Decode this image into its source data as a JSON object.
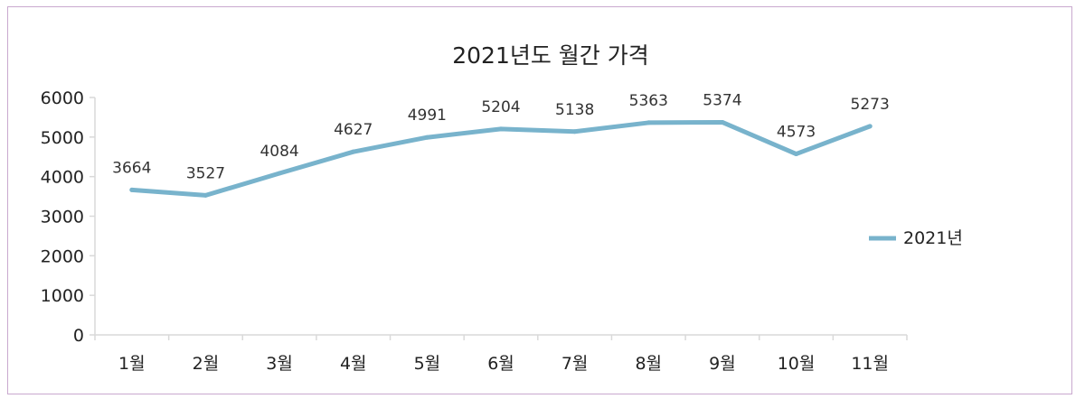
{
  "chart_data": {
    "type": "line",
    "title": "2021년도 월간 가격",
    "categories": [
      "1월",
      "2월",
      "3월",
      "4월",
      "5월",
      "6월",
      "7월",
      "8월",
      "9월",
      "10월",
      "11월"
    ],
    "series": [
      {
        "name": "2021년",
        "values": [
          3664,
          3527,
          4084,
          4627,
          4991,
          5204,
          5138,
          5363,
          5374,
          4573,
          5273
        ]
      }
    ],
    "ylim": [
      0,
      6000
    ],
    "yticks": [
      0,
      1000,
      2000,
      3000,
      4000,
      5000,
      6000
    ],
    "legend_position": "right",
    "grid": false,
    "colors": {
      "line": "#78b3cc",
      "axis": "#d9d9d9",
      "frame": "#c9a9cf"
    }
  }
}
